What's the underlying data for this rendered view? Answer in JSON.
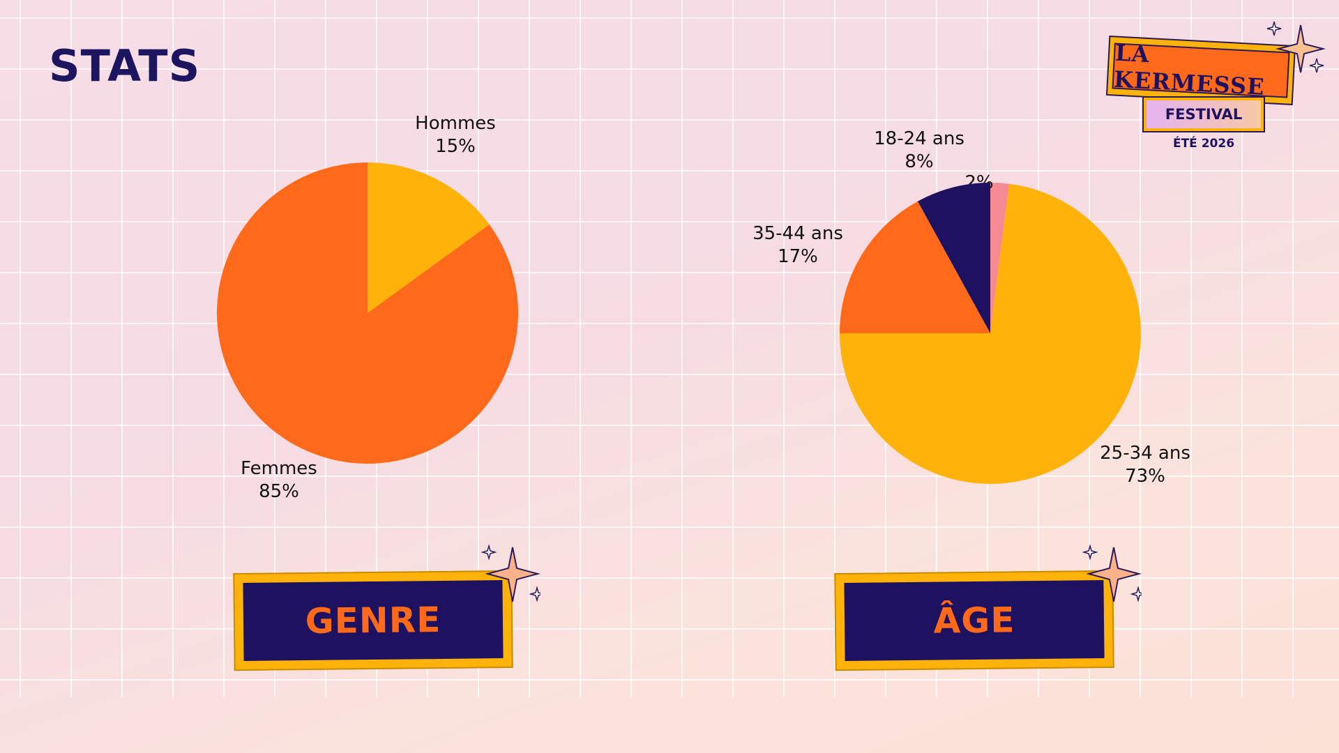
{
  "page": {
    "title": "STATS"
  },
  "logo": {
    "name": "LA KERMESSE",
    "subtitle": "FESTIVAL",
    "date": "ÉTÉ 2026"
  },
  "badges": {
    "left": "GENRE",
    "right": "ÂGE"
  },
  "colors": {
    "orange": "#ff6a1a",
    "amber": "#ffb20a",
    "navy": "#1e1160",
    "pink": "#f58a92"
  },
  "chart_data": [
    {
      "type": "pie",
      "title": "GENRE",
      "slices": [
        {
          "label": "Hommes",
          "value": 15,
          "value_label": "15%",
          "color": "#ffb20a"
        },
        {
          "label": "Femmes",
          "value": 85,
          "value_label": "85%",
          "color": "#ff6a1a"
        }
      ]
    },
    {
      "type": "pie",
      "title": "ÂGE",
      "slices": [
        {
          "label": "",
          "value": 2,
          "value_label": "2%",
          "color": "#f58a92"
        },
        {
          "label": "25-34 ans",
          "value": 73,
          "value_label": "73%",
          "color": "#ffb20a"
        },
        {
          "label": "35-44 ans",
          "value": 17,
          "value_label": "17%",
          "color": "#ff6a1a"
        },
        {
          "label": "18-24 ans",
          "value": 8,
          "value_label": "8%",
          "color": "#1e1160"
        }
      ]
    }
  ]
}
